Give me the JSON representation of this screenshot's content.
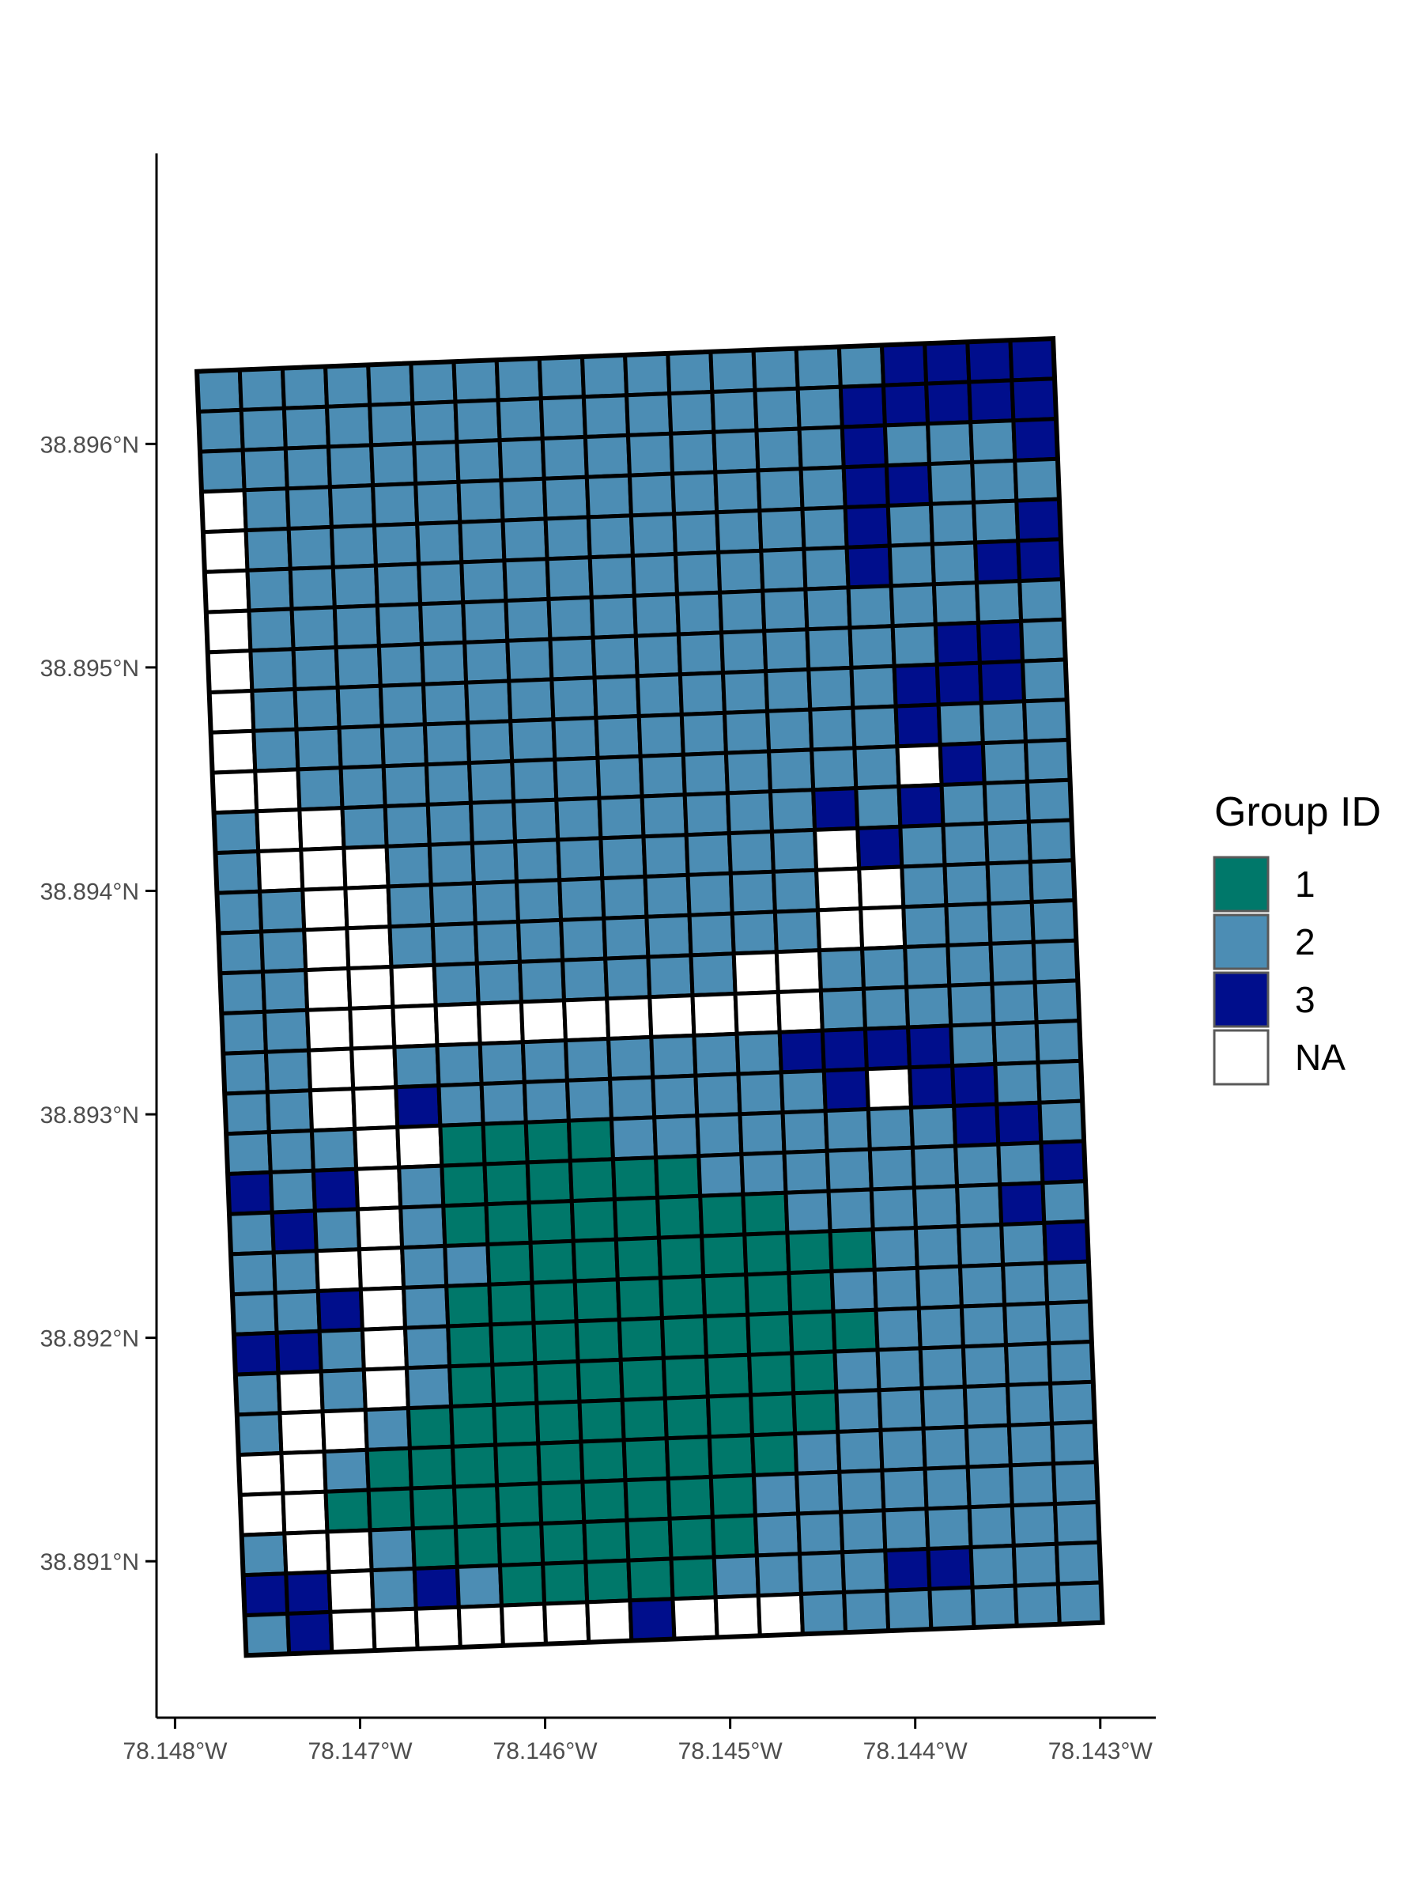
{
  "chart_data": {
    "type": "heatmap",
    "title": "",
    "xlabel": "",
    "ylabel": "",
    "x_ticks": [
      {
        "value": -78.148,
        "label": "78.148°W"
      },
      {
        "value": -78.147,
        "label": "78.147°W"
      },
      {
        "value": -78.146,
        "label": "78.146°W"
      },
      {
        "value": -78.145,
        "label": "78.145°W"
      },
      {
        "value": -78.144,
        "label": "78.144°W"
      },
      {
        "value": -78.143,
        "label": "78.143°W"
      }
    ],
    "y_ticks": [
      {
        "value": 38.891,
        "label": "38.891°N"
      },
      {
        "value": 38.892,
        "label": "38.892°N"
      },
      {
        "value": 38.893,
        "label": "38.893°N"
      },
      {
        "value": 38.894,
        "label": "38.894°N"
      },
      {
        "value": 38.895,
        "label": "38.895°N"
      },
      {
        "value": 38.896,
        "label": "38.896°N"
      }
    ],
    "xlim": [
      -78.1481,
      -78.1427
    ],
    "ylim": [
      38.8903,
      38.8973
    ],
    "grid": false,
    "grid_extent": {
      "lon_min": -78.14775,
      "lon_max": -78.14312,
      "lat_min": 38.89065,
      "lat_max": 38.8964
    },
    "rotation_deg": -2.2,
    "columns": 20,
    "rows": 32,
    "cell_legend": {
      "1": "1",
      "2": "2",
      "3": "3",
      "0": "NA"
    },
    "cells": [
      "22222222222222223333",
      "22222222222222233333",
      "22222222222222232223",
      "02222222222222233222",
      "02222222222222232223",
      "02222222222222232233",
      "02222222222222222222",
      "02222222222222222332",
      "02222222222222223332",
      "02222222222222223222",
      "00222222222222220322",
      "20022222222222323222",
      "20002222222222032222",
      "22002222222222002222",
      "22002222222222002222",
      "22000222222200222222",
      "22000000000000222222",
      "22002222222223333222",
      "22003222222222303322",
      "22200111122222222332",
      "32302111111222222223",
      "23202111111112222232",
      "22002211111111122223",
      "22302111111111222222",
      "33202111111111122222",
      "20202111111111222222",
      "20021111111111222222",
      "00211111111112222222",
      "00111111111122222222",
      "20021111111122222222",
      "33023211111222233222",
      "23000000030002222222"
    ],
    "legend": {
      "title": "Group ID",
      "position": "right",
      "entries": [
        {
          "key": "1",
          "label": "1",
          "color": "#00786A"
        },
        {
          "key": "2",
          "label": "2",
          "color": "#4C8DB4"
        },
        {
          "key": "3",
          "label": "3",
          "color": "#000E8C"
        },
        {
          "key": "0",
          "label": "NA",
          "color": "#FFFFFF"
        }
      ]
    },
    "colors": {
      "cell_border": "#000000",
      "axis": "#000000",
      "tick_text": "#4d4d4d"
    }
  }
}
